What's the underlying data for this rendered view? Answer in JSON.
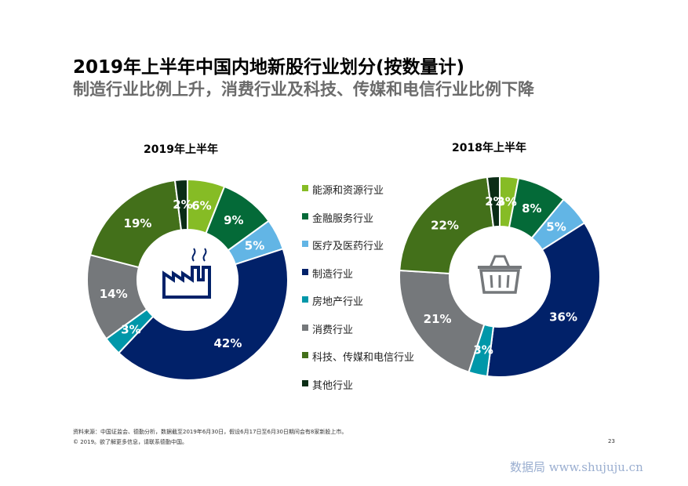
{
  "title": "2019年上半年中国内地新股行业划分(按数量计)",
  "subtitle": "制造行业比例上升，消费行业及科技、传媒和电信行业比例下降",
  "legend": [
    {
      "label": "能源和资源行业",
      "color": "#86bc25"
    },
    {
      "label": "金融服务行业",
      "color": "#046a38"
    },
    {
      "label": "医疗及医药行业",
      "color": "#62b5e5"
    },
    {
      "label": "制造行业",
      "color": "#012169"
    },
    {
      "label": "房地产行业",
      "color": "#0097a9"
    },
    {
      "label": "消费行业",
      "color": "#75787b"
    },
    {
      "label": "科技、传媒和电信行业",
      "color": "#43701a"
    },
    {
      "label": "其他行业",
      "color": "#0b2d16"
    }
  ],
  "chart_data": [
    {
      "type": "pie",
      "title": "2019年上半年",
      "center_icon": "factory-icon",
      "categories": [
        "能源和资源行业",
        "金融服务行业",
        "医疗及医药行业",
        "制造行业",
        "房地产行业",
        "消费行业",
        "科技、传媒和电信行业",
        "其他行业"
      ],
      "values": [
        6,
        9,
        5,
        42,
        3,
        14,
        19,
        2
      ],
      "data_labels": [
        "6%",
        "9%",
        "5%",
        "42%",
        "3%",
        "14%",
        "19%",
        "2%"
      ]
    },
    {
      "type": "pie",
      "title": "2018年上半年",
      "center_icon": "shopping-basket-icon",
      "categories": [
        "能源和资源行业",
        "金融服务行业",
        "医疗及医药行业",
        "制造行业",
        "房地产行业",
        "消费行业",
        "科技、传媒和电信行业",
        "其他行业"
      ],
      "values": [
        3,
        8,
        5,
        36,
        3,
        21,
        22,
        2
      ],
      "data_labels": [
        "3%",
        "8%",
        "5%",
        "36%",
        "3%",
        "21%",
        "22%",
        "2%"
      ]
    }
  ],
  "footer": {
    "source": "资料来源：中国证监会、德勤分析，数据截至2019年6月30日，假设6月17日至6月30日期间会有8家新股上市。",
    "copyright": "© 2019。欲了解更多信息，请联系德勤中国。",
    "page_number": "23"
  },
  "watermark": "数据局 www.shujuju.cn"
}
